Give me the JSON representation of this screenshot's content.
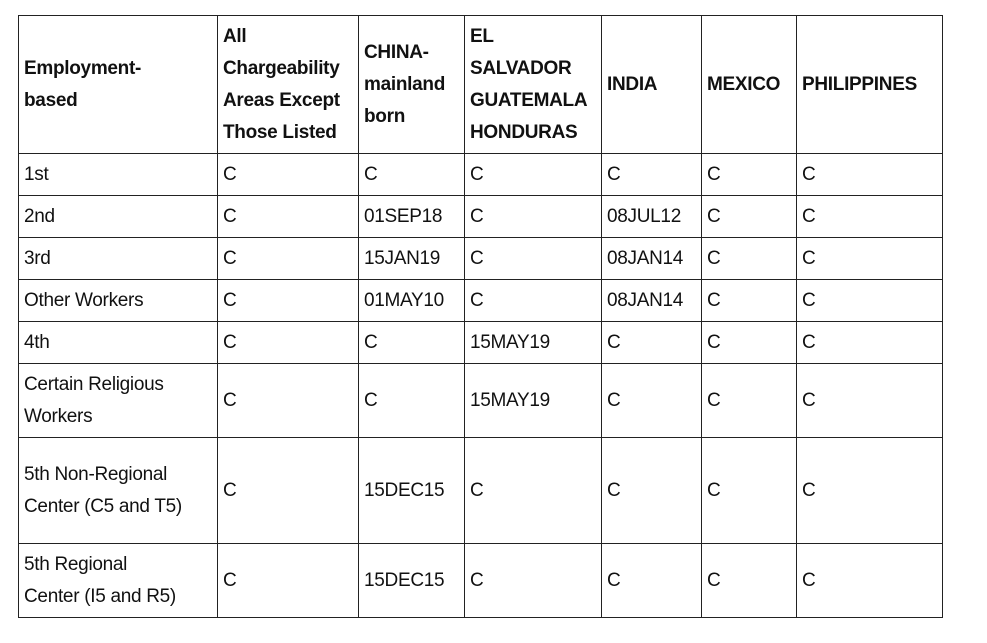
{
  "headers": [
    "Employment-based",
    "All Chargeability Areas Except Those Listed",
    "CHINA-mainland born",
    "EL SALVADOR GUATEMALA HONDURAS",
    "INDIA",
    "MEXICO",
    "PHILIPPINES"
  ],
  "rows": [
    [
      "1st",
      "C",
      "C",
      "C",
      "C",
      "C",
      "C"
    ],
    [
      "2nd",
      "C",
      "01SEP18",
      "C",
      "08JUL12",
      "C",
      "C"
    ],
    [
      "3rd",
      "C",
      "15JAN19",
      "C",
      "08JAN14",
      "C",
      "C"
    ],
    [
      "Other Workers",
      "C",
      "01MAY10",
      "C",
      "08JAN14",
      "C",
      "C"
    ],
    [
      "4th",
      "C",
      "C",
      "15MAY19",
      "C",
      "C",
      "C"
    ],
    [
      "Certain Religious Workers",
      "C",
      "C",
      "15MAY19",
      "C",
      "C",
      "C"
    ],
    [
      "5th Non-Regional Center (C5 and T5)",
      "C",
      "15DEC15",
      "C",
      "C",
      "C",
      "C"
    ],
    [
      "5th Regional Center (I5 and R5)",
      "C",
      "15DEC15",
      "C",
      "C",
      "C",
      "C"
    ]
  ]
}
